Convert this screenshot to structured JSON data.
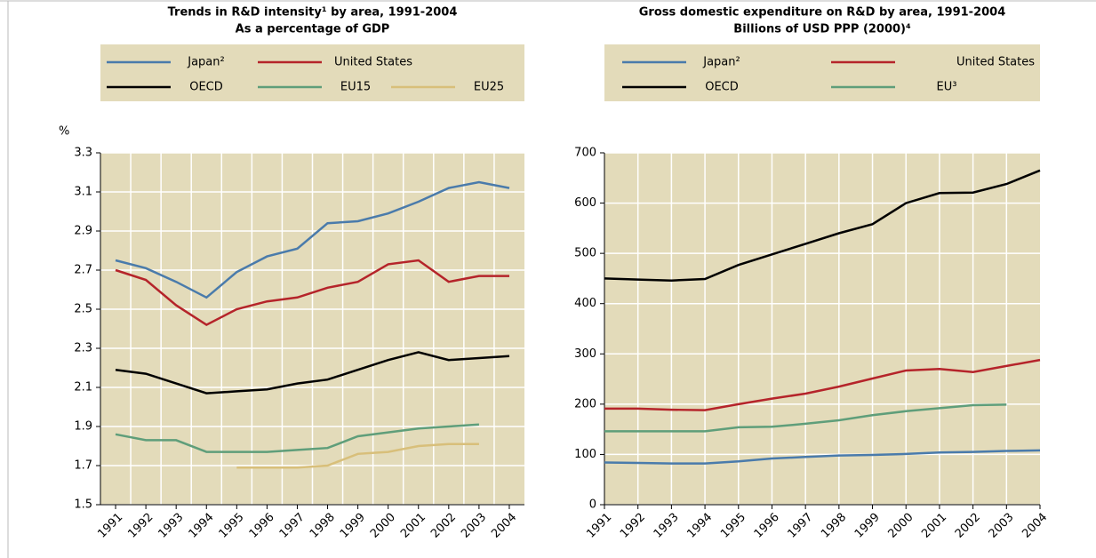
{
  "chart_data": [
    {
      "type": "line",
      "title": "Trends in R&D intensity¹ by area, 1991-2004",
      "subtitle": "As a percentage of GDP",
      "y_label": "%",
      "categories": [
        "1991",
        "1992",
        "1993",
        "1994",
        "1995",
        "1996",
        "1997",
        "1998",
        "1999",
        "2000",
        "2001",
        "2002",
        "2003",
        "2004"
      ],
      "series": [
        {
          "name": "Japan²",
          "color": "#4a7bab",
          "values": [
            2.75,
            2.71,
            2.64,
            2.56,
            2.69,
            2.77,
            2.81,
            2.94,
            2.95,
            2.99,
            3.05,
            3.12,
            3.15,
            3.12
          ]
        },
        {
          "name": "United States",
          "color": "#b5242a",
          "values": [
            2.7,
            2.65,
            2.52,
            2.42,
            2.5,
            2.54,
            2.56,
            2.61,
            2.64,
            2.73,
            2.75,
            2.64,
            2.67,
            2.67
          ]
        },
        {
          "name": "OECD",
          "color": "#000000",
          "values": [
            2.19,
            2.17,
            2.12,
            2.07,
            2.08,
            2.09,
            2.12,
            2.14,
            2.19,
            2.24,
            2.28,
            2.24,
            2.25,
            2.26
          ]
        },
        {
          "name": "EU15",
          "color": "#5f9e7a",
          "values": [
            1.86,
            1.83,
            1.83,
            1.77,
            1.77,
            1.77,
            1.78,
            1.79,
            1.85,
            1.87,
            1.89,
            1.9,
            1.91,
            null
          ]
        },
        {
          "name": "EU25",
          "color": "#d8bf7a",
          "values": [
            null,
            null,
            null,
            null,
            1.69,
            1.69,
            1.69,
            1.7,
            1.76,
            1.77,
            1.8,
            1.81,
            1.81,
            null
          ]
        }
      ],
      "ylim": [
        1.5,
        3.3
      ],
      "yticks": [
        1.5,
        1.7,
        1.9,
        2.1,
        2.3,
        2.5,
        2.7,
        2.9,
        3.1,
        3.3
      ],
      "grid": true
    },
    {
      "type": "line",
      "title": "Gross domestic expenditure on R&D by area, 1991-2004",
      "subtitle": "Billions of USD PPP (2000)⁴",
      "categories": [
        "1991",
        "1992",
        "1993",
        "1994",
        "1995",
        "1996",
        "1997",
        "1998",
        "1999",
        "2000",
        "2001",
        "2002",
        "2003",
        "2004"
      ],
      "series": [
        {
          "name": "Japan²",
          "color": "#4a7bab",
          "values": [
            84,
            83,
            82,
            82,
            86,
            92,
            95,
            98,
            99,
            101,
            104,
            105,
            107,
            108
          ]
        },
        {
          "name": "United States",
          "color": "#b5242a",
          "values": [
            191,
            191,
            189,
            188,
            200,
            211,
            221,
            235,
            251,
            267,
            270,
            264,
            276,
            288
          ]
        },
        {
          "name": "OECD",
          "color": "#000000",
          "values": [
            450,
            448,
            446,
            449,
            477,
            498,
            519,
            540,
            558,
            600,
            620,
            621,
            638,
            665
          ]
        },
        {
          "name": "EU³",
          "color": "#5f9e7a",
          "values": [
            146,
            146,
            146,
            146,
            154,
            155,
            161,
            168,
            178,
            186,
            192,
            198,
            199,
            null
          ]
        }
      ],
      "ylim": [
        0,
        700
      ],
      "yticks": [
        0,
        100,
        200,
        300,
        400,
        500,
        600,
        700
      ],
      "grid": true
    }
  ]
}
